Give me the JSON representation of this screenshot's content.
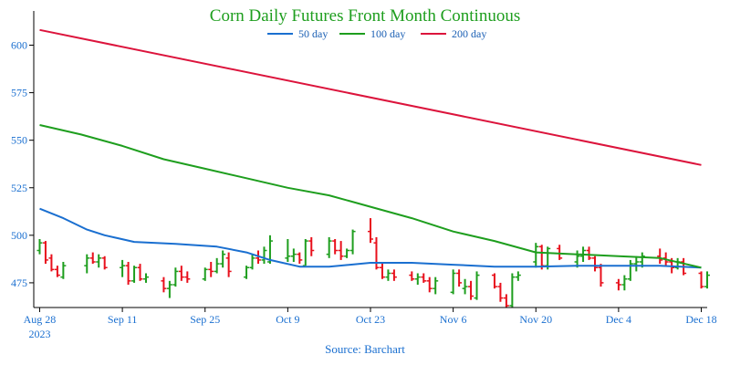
{
  "chart_data": {
    "type": "ohlc",
    "title": "Corn Daily Futures Front Month Continuous",
    "title_color": "#1e9e1e",
    "source": "Source: Barchart",
    "ylim": [
      462,
      618
    ],
    "y_ticks": [
      475,
      500,
      525,
      550,
      575,
      600
    ],
    "x_ticks": [
      {
        "date": "2023-08-28",
        "label": "Aug 28",
        "sublabel": "2023"
      },
      {
        "date": "2023-09-11",
        "label": "Sep 11"
      },
      {
        "date": "2023-09-25",
        "label": "Sep 25"
      },
      {
        "date": "2023-10-09",
        "label": "Oct 9"
      },
      {
        "date": "2023-10-23",
        "label": "Oct 23"
      },
      {
        "date": "2023-11-06",
        "label": "Nov 6"
      },
      {
        "date": "2023-11-20",
        "label": "Nov 20"
      },
      {
        "date": "2023-12-04",
        "label": "Dec 4"
      },
      {
        "date": "2023-12-18",
        "label": "Dec 18"
      }
    ],
    "xlim": [
      "2023-08-27",
      "2023-12-19"
    ],
    "legend": {
      "placement": "top-center"
    },
    "colors": {
      "up": "#1e9e1e",
      "down": "#e8101c",
      "axis": "#000000",
      "tick_text": "#1a6fd0"
    },
    "series": [
      {
        "name": "50 day",
        "color": "#1a6fd0",
        "points": [
          [
            "2023-08-28",
            514
          ],
          [
            "2023-09-01",
            509
          ],
          [
            "2023-09-05",
            503
          ],
          [
            "2023-09-08",
            500
          ],
          [
            "2023-09-13",
            496.5
          ],
          [
            "2023-09-20",
            495.5
          ],
          [
            "2023-09-27",
            494
          ],
          [
            "2023-10-02",
            491
          ],
          [
            "2023-10-06",
            487
          ],
          [
            "2023-10-11",
            483.5
          ],
          [
            "2023-10-16",
            483.5
          ],
          [
            "2023-10-23",
            485.5
          ],
          [
            "2023-10-30",
            485.5
          ],
          [
            "2023-11-06",
            484.5
          ],
          [
            "2023-11-13",
            483.5
          ],
          [
            "2023-11-20",
            483.5
          ],
          [
            "2023-11-27",
            484
          ],
          [
            "2023-12-04",
            484
          ],
          [
            "2023-12-11",
            484
          ],
          [
            "2023-12-18",
            483
          ]
        ]
      },
      {
        "name": "100 day",
        "color": "#1e9e1e",
        "points": [
          [
            "2023-08-28",
            558
          ],
          [
            "2023-09-04",
            553
          ],
          [
            "2023-09-11",
            547
          ],
          [
            "2023-09-18",
            540
          ],
          [
            "2023-09-25",
            535
          ],
          [
            "2023-10-02",
            530
          ],
          [
            "2023-10-09",
            525
          ],
          [
            "2023-10-16",
            521
          ],
          [
            "2023-10-23",
            515
          ],
          [
            "2023-10-30",
            509
          ],
          [
            "2023-11-06",
            502
          ],
          [
            "2023-11-13",
            497
          ],
          [
            "2023-11-20",
            491
          ],
          [
            "2023-11-27",
            490
          ],
          [
            "2023-12-04",
            489
          ],
          [
            "2023-12-11",
            488
          ],
          [
            "2023-12-18",
            483
          ]
        ]
      },
      {
        "name": "200 day",
        "color": "#dc143c",
        "points": [
          [
            "2023-08-28",
            608
          ],
          [
            "2023-12-18",
            537
          ]
        ]
      }
    ],
    "ohlc": [
      [
        "2023-08-28",
        492,
        498,
        490,
        496
      ],
      [
        "2023-08-29",
        496,
        497,
        485,
        487
      ],
      [
        "2023-08-30",
        488,
        490,
        481,
        482
      ],
      [
        "2023-08-31",
        482,
        484,
        478,
        479
      ],
      [
        "2023-09-01",
        478,
        486,
        477,
        484
      ],
      [
        "2023-09-05",
        484,
        490,
        480,
        488
      ],
      [
        "2023-09-06",
        488,
        491,
        485,
        486
      ],
      [
        "2023-09-07",
        486,
        490,
        483,
        488
      ],
      [
        "2023-09-08",
        488,
        489,
        482,
        483
      ],
      [
        "2023-09-11",
        483,
        487,
        478,
        484
      ],
      [
        "2023-09-12",
        484,
        486,
        474,
        476
      ],
      [
        "2023-09-13",
        476,
        484,
        475,
        483
      ],
      [
        "2023-09-14",
        483,
        485,
        476,
        477
      ],
      [
        "2023-09-15",
        477,
        480,
        475,
        478
      ],
      [
        "2023-09-18",
        476,
        478,
        470,
        472
      ],
      [
        "2023-09-19",
        472,
        476,
        467,
        474
      ],
      [
        "2023-09-20",
        474,
        483,
        473,
        481
      ],
      [
        "2023-09-21",
        481,
        484,
        476,
        478
      ],
      [
        "2023-09-22",
        478,
        481,
        475,
        477
      ],
      [
        "2023-09-25",
        477,
        483,
        476,
        482
      ],
      [
        "2023-09-26",
        482,
        486,
        478,
        481
      ],
      [
        "2023-09-27",
        481,
        488,
        480,
        485
      ],
      [
        "2023-09-28",
        485,
        492,
        483,
        490
      ],
      [
        "2023-09-29",
        488,
        491,
        478,
        481
      ],
      [
        "2023-10-02",
        478,
        484,
        477,
        483
      ],
      [
        "2023-10-03",
        483,
        490,
        482,
        488
      ],
      [
        "2023-10-04",
        488,
        492,
        485,
        487
      ],
      [
        "2023-10-05",
        487,
        494,
        485,
        492
      ],
      [
        "2023-10-06",
        486,
        500,
        485,
        497
      ],
      [
        "2023-10-09",
        488,
        498,
        486,
        489
      ],
      [
        "2023-10-10",
        489,
        493,
        486,
        490
      ],
      [
        "2023-10-11",
        490,
        491,
        485,
        487
      ],
      [
        "2023-10-12",
        484,
        498,
        484,
        497
      ],
      [
        "2023-10-13",
        497,
        499,
        489,
        492
      ],
      [
        "2023-10-16",
        490,
        499,
        488,
        497
      ],
      [
        "2023-10-17",
        497,
        498,
        490,
        492
      ],
      [
        "2023-10-18",
        492,
        497,
        487,
        489
      ],
      [
        "2023-10-19",
        489,
        493,
        488,
        492
      ],
      [
        "2023-10-20",
        492,
        503,
        490,
        502
      ],
      [
        "2023-10-23",
        502,
        509,
        496,
        498
      ],
      [
        "2023-10-24",
        496,
        499,
        482,
        483
      ],
      [
        "2023-10-25",
        483,
        486,
        477,
        478
      ],
      [
        "2023-10-26",
        478,
        482,
        476,
        480
      ],
      [
        "2023-10-27",
        480,
        482,
        476,
        478
      ],
      [
        "2023-10-30",
        479,
        481,
        476,
        477
      ],
      [
        "2023-10-31",
        477,
        480,
        474,
        478
      ],
      [
        "2023-11-01",
        478,
        480,
        475,
        476
      ],
      [
        "2023-11-02",
        476,
        478,
        470,
        472
      ],
      [
        "2023-11-03",
        472,
        478,
        469,
        476
      ],
      [
        "2023-11-06",
        470,
        482,
        469,
        480
      ],
      [
        "2023-11-07",
        480,
        482,
        473,
        475
      ],
      [
        "2023-11-08",
        472,
        477,
        469,
        473
      ],
      [
        "2023-11-09",
        473,
        476,
        466,
        468
      ],
      [
        "2023-11-10",
        467,
        481,
        466,
        479
      ],
      [
        "2023-11-13",
        479,
        480,
        472,
        473
      ],
      [
        "2023-11-14",
        473,
        475,
        465,
        467
      ],
      [
        "2023-11-15",
        467,
        469,
        462,
        463
      ],
      [
        "2023-11-16",
        463,
        480,
        462,
        478
      ],
      [
        "2023-11-17",
        478,
        481,
        476,
        479
      ],
      [
        "2023-11-20",
        486,
        496,
        483,
        494
      ],
      [
        "2023-11-21",
        494,
        495,
        482,
        484
      ],
      [
        "2023-11-22",
        484,
        494,
        482,
        493
      ],
      [
        "2023-11-24",
        493,
        495,
        487,
        488
      ],
      [
        "2023-11-27",
        486,
        492,
        483,
        489
      ],
      [
        "2023-11-28",
        489,
        494,
        486,
        492
      ],
      [
        "2023-11-29",
        492,
        494,
        487,
        488
      ],
      [
        "2023-11-30",
        488,
        489,
        481,
        483
      ],
      [
        "2023-12-01",
        483,
        485,
        473,
        475
      ],
      [
        "2023-12-04",
        475,
        477,
        471,
        474
      ],
      [
        "2023-12-05",
        474,
        479,
        471,
        477
      ],
      [
        "2023-12-06",
        477,
        487,
        476,
        485
      ],
      [
        "2023-12-07",
        485,
        489,
        481,
        486
      ],
      [
        "2023-12-08",
        486,
        491,
        483,
        489
      ],
      [
        "2023-12-11",
        489,
        493,
        485,
        487
      ],
      [
        "2023-12-12",
        488,
        491,
        484,
        486
      ],
      [
        "2023-12-13",
        486,
        488,
        480,
        483
      ],
      [
        "2023-12-14",
        483,
        488,
        482,
        486
      ],
      [
        "2023-12-15",
        486,
        488,
        479,
        480
      ],
      [
        "2023-12-18",
        480,
        481,
        472,
        473
      ],
      [
        "2023-12-19",
        473,
        481,
        472,
        479
      ]
    ]
  }
}
